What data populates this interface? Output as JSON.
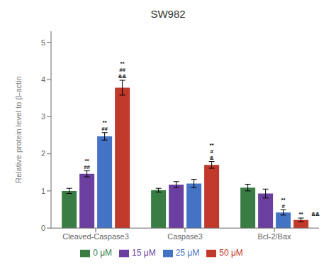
{
  "chart_data": {
    "type": "bar",
    "title": "SW982",
    "ylabel": "Relative protein level to β-actin",
    "categories": [
      "Cleaved-Caspase3",
      "Caspase3",
      "Bcl-2/Bax"
    ],
    "series": [
      {
        "name": "0 μM",
        "color": "#3a7d44",
        "values": [
          1.0,
          1.02,
          1.09
        ],
        "errors": [
          0.07,
          0.05,
          0.09
        ]
      },
      {
        "name": "15 μM",
        "color": "#6b3fa0",
        "values": [
          1.46,
          1.17,
          0.93
        ],
        "errors": [
          0.08,
          0.08,
          0.12
        ]
      },
      {
        "name": "25 μM",
        "color": "#4472c4",
        "values": [
          2.47,
          1.2,
          0.42
        ],
        "errors": [
          0.1,
          0.11,
          0.07
        ]
      },
      {
        "name": "50 μM",
        "color": "#c0392b",
        "values": [
          3.78,
          1.7,
          0.22
        ],
        "errors": [
          0.2,
          0.09,
          0.05
        ]
      }
    ],
    "annotations": [
      {
        "category": "Cleaved-Caspase3",
        "series": "15 μM",
        "lines": [
          "##",
          "**"
        ]
      },
      {
        "category": "Cleaved-Caspase3",
        "series": "25 μM",
        "lines": [
          "##",
          "**"
        ]
      },
      {
        "category": "Cleaved-Caspase3",
        "series": "50 μM",
        "lines": [
          "&&",
          "##",
          "**"
        ]
      },
      {
        "category": "Caspase3",
        "series": "50 μM",
        "lines": [
          "&",
          "#",
          "**"
        ]
      },
      {
        "category": "Bcl-2/Bax",
        "series": "25 μM",
        "lines": [
          "#",
          "**"
        ]
      },
      {
        "category": "Bcl-2/Bax",
        "series": "50 μM",
        "lines": [
          "**"
        ],
        "side_text": "&&"
      }
    ],
    "ylim": [
      0,
      5.3
    ],
    "yticks": [
      0,
      1,
      2,
      3,
      4,
      5
    ],
    "grid": false,
    "legend": "bottom"
  }
}
